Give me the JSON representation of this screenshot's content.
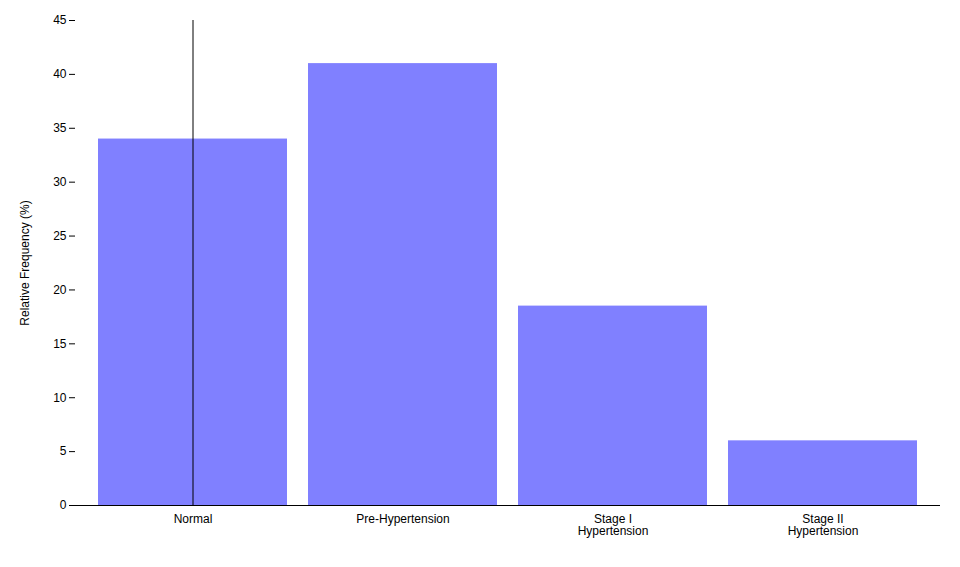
{
  "chart_data": {
    "type": "bar",
    "categories": [
      "Normal",
      "Pre-Hypertension",
      "Stage I\nHypertension",
      "Stage II\nHypertension"
    ],
    "values": [
      34,
      41,
      18.5,
      6
    ],
    "color": "#8080ff",
    "ylabel": "Relative Frequency (%)",
    "ylim": [
      0,
      45
    ],
    "yticks": [
      0,
      5,
      10,
      15,
      20,
      25,
      30,
      35,
      40,
      45
    ],
    "grid": false
  }
}
